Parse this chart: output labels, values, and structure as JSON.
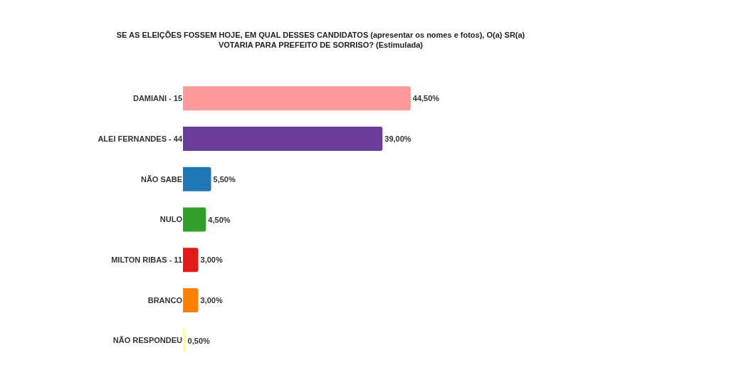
{
  "chart_data": {
    "type": "bar",
    "orientation": "horizontal",
    "title": "SE AS ELEIÇÕES FOSSEM HOJE, EM QUAL DESSES CANDIDATOS (apresentar os nomes e fotos), O(a) SR(a)\nVOTARIA PARA PREFEITO DE SORRISO? (Estimulada)",
    "categories": [
      "DAMIANI - 15",
      "ALEI FERNANDES - 44",
      "NÃO SABE",
      "NULO",
      "MILTON RIBAS - 11",
      "BRANCO",
      "NÃO RESPONDEU"
    ],
    "values": [
      44.5,
      39,
      5.5,
      4.5,
      3,
      3,
      0.5
    ],
    "colors": [
      "#fe9a99",
      "#6a3d9a",
      "#1f78b4",
      "#33a02c",
      "#e31a1c",
      "#ff7f00",
      "#ffff99"
    ],
    "value_labels": [
      "44,50%",
      "39,00%",
      "5,50%",
      "4,50%",
      "3,00%",
      "3,00%",
      "0,50%"
    ]
  }
}
